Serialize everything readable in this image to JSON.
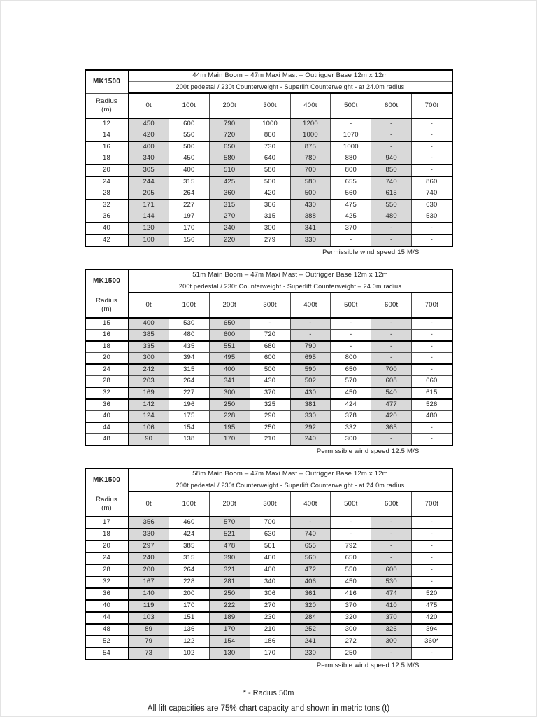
{
  "model": "MK1500",
  "radius_header": "Radius",
  "radius_unit": "(m)",
  "columns": [
    "0t",
    "100t",
    "200t",
    "300t",
    "400t",
    "500t",
    "600t",
    "700t"
  ],
  "colors": {
    "shaded_cell": "#d9d9d9",
    "border": "#000000"
  },
  "tables": [
    {
      "title": "44m Main Boom – 47m Maxi Mast – Outrigger Base 12m x 12m",
      "subtitle": "200t pedestal / 230t Counterweight - Superlift Counterweight - at 24.0m radius",
      "wind_note": "Permissible wind speed 15 M/S",
      "rows": [
        {
          "radius": "12",
          "values": [
            "450",
            "600",
            "790",
            "1000",
            "1200",
            "-",
            "-",
            "-"
          ],
          "group_end": false
        },
        {
          "radius": "14",
          "values": [
            "420",
            "550",
            "720",
            "860",
            "1000",
            "1070",
            "-",
            "-"
          ],
          "group_end": true
        },
        {
          "radius": "16",
          "values": [
            "400",
            "500",
            "650",
            "730",
            "875",
            "1000",
            "-",
            "-"
          ],
          "group_end": false
        },
        {
          "radius": "18",
          "values": [
            "340",
            "450",
            "580",
            "640",
            "780",
            "880",
            "940",
            "-"
          ],
          "group_end": true
        },
        {
          "radius": "20",
          "values": [
            "305",
            "400",
            "510",
            "580",
            "700",
            "800",
            "850",
            "-"
          ],
          "group_end": true
        },
        {
          "radius": "24",
          "values": [
            "244",
            "315",
            "425",
            "500",
            "580",
            "655",
            "740",
            "860"
          ],
          "group_end": false
        },
        {
          "radius": "28",
          "values": [
            "205",
            "264",
            "360",
            "420",
            "500",
            "560",
            "615",
            "740"
          ],
          "group_end": true
        },
        {
          "radius": "32",
          "values": [
            "171",
            "227",
            "315",
            "366",
            "430",
            "475",
            "550",
            "630"
          ],
          "group_end": false
        },
        {
          "radius": "36",
          "values": [
            "144",
            "197",
            "270",
            "315",
            "388",
            "425",
            "480",
            "530"
          ],
          "group_end": true
        },
        {
          "radius": "40",
          "values": [
            "120",
            "170",
            "240",
            "300",
            "341",
            "370",
            "-",
            "-"
          ],
          "group_end": true
        },
        {
          "radius": "42",
          "values": [
            "100",
            "156",
            "220",
            "279",
            "330",
            "-",
            "-",
            "-"
          ],
          "group_end": false
        }
      ]
    },
    {
      "title": "51m Main Boom – 47m Maxi Mast – Outrigger Base 12m x 12m",
      "subtitle": "200t pedestal / 230t Counterweight - Superlift Counterweight – 24.0m radius",
      "wind_note": "Permissible wind speed 12.5 M/S",
      "rows": [
        {
          "radius": "15",
          "values": [
            "400",
            "530",
            "650",
            "-",
            "-",
            "-",
            "-",
            "-"
          ],
          "group_end": false
        },
        {
          "radius": "16",
          "values": [
            "385",
            "480",
            "600",
            "720",
            "-",
            "-",
            "-",
            "-"
          ],
          "group_end": true
        },
        {
          "radius": "18",
          "values": [
            "335",
            "435",
            "551",
            "680",
            "790",
            "-",
            "-",
            "-"
          ],
          "group_end": false
        },
        {
          "radius": "20",
          "values": [
            "300",
            "394",
            "495",
            "600",
            "695",
            "800",
            "-",
            "-"
          ],
          "group_end": true
        },
        {
          "radius": "24",
          "values": [
            "242",
            "315",
            "400",
            "500",
            "590",
            "650",
            "700",
            "-"
          ],
          "group_end": false
        },
        {
          "radius": "28",
          "values": [
            "203",
            "264",
            "341",
            "430",
            "502",
            "570",
            "608",
            "660"
          ],
          "group_end": true
        },
        {
          "radius": "32",
          "values": [
            "169",
            "227",
            "300",
            "370",
            "430",
            "450",
            "540",
            "615"
          ],
          "group_end": true
        },
        {
          "radius": "36",
          "values": [
            "142",
            "196",
            "250",
            "325",
            "381",
            "424",
            "477",
            "526"
          ],
          "group_end": false
        },
        {
          "radius": "40",
          "values": [
            "124",
            "175",
            "228",
            "290",
            "330",
            "378",
            "420",
            "480"
          ],
          "group_end": true
        },
        {
          "radius": "44",
          "values": [
            "106",
            "154",
            "195",
            "250",
            "292",
            "332",
            "365",
            "-"
          ],
          "group_end": false
        },
        {
          "radius": "48",
          "values": [
            "90",
            "138",
            "170",
            "210",
            "240",
            "300",
            "-",
            "-"
          ],
          "group_end": false
        }
      ]
    },
    {
      "title": "58m Main Boom – 47m Maxi Mast – Outrigger Base 12m x 12m",
      "subtitle": "200t pedestal / 230t Counterweight - Superlift Counterweight - at 24.0m radius",
      "wind_note": "Permissible wind speed 12.5 M/S",
      "rows": [
        {
          "radius": "17",
          "values": [
            "356",
            "460",
            "570",
            "700",
            "-",
            "-",
            "-",
            "-"
          ],
          "group_end": true
        },
        {
          "radius": "18",
          "values": [
            "330",
            "424",
            "521",
            "630",
            "740",
            "-",
            "-",
            "-"
          ],
          "group_end": true
        },
        {
          "radius": "20",
          "values": [
            "297",
            "385",
            "478",
            "561",
            "655",
            "792",
            "-",
            "-"
          ],
          "group_end": true
        },
        {
          "radius": "24",
          "values": [
            "240",
            "315",
            "390",
            "460",
            "560",
            "650",
            "-",
            "-"
          ],
          "group_end": true
        },
        {
          "radius": "28",
          "values": [
            "200",
            "264",
            "321",
            "400",
            "472",
            "550",
            "600",
            "-"
          ],
          "group_end": true
        },
        {
          "radius": "32",
          "values": [
            "167",
            "228",
            "281",
            "340",
            "406",
            "450",
            "530",
            "-"
          ],
          "group_end": true
        },
        {
          "radius": "36",
          "values": [
            "140",
            "200",
            "250",
            "306",
            "361",
            "416",
            "474",
            "520"
          ],
          "group_end": true
        },
        {
          "radius": "40",
          "values": [
            "119",
            "170",
            "222",
            "270",
            "320",
            "370",
            "410",
            "475"
          ],
          "group_end": true
        },
        {
          "radius": "44",
          "values": [
            "103",
            "151",
            "189",
            "230",
            "284",
            "320",
            "370",
            "420"
          ],
          "group_end": true
        },
        {
          "radius": "48",
          "values": [
            "89",
            "136",
            "170",
            "210",
            "252",
            "300",
            "326",
            "394"
          ],
          "group_end": true
        },
        {
          "radius": "52",
          "values": [
            "79",
            "122",
            "154",
            "186",
            "241",
            "272",
            "300",
            "360*"
          ],
          "group_end": true
        },
        {
          "radius": "54",
          "values": [
            "73",
            "102",
            "130",
            "170",
            "230",
            "250",
            "-",
            "-"
          ],
          "group_end": false
        }
      ]
    }
  ],
  "footnotes": {
    "asterisk": "* - Radius 50m",
    "capacity": "All lift capacities are 75% chart capacity and shown in metric tons (t)"
  }
}
